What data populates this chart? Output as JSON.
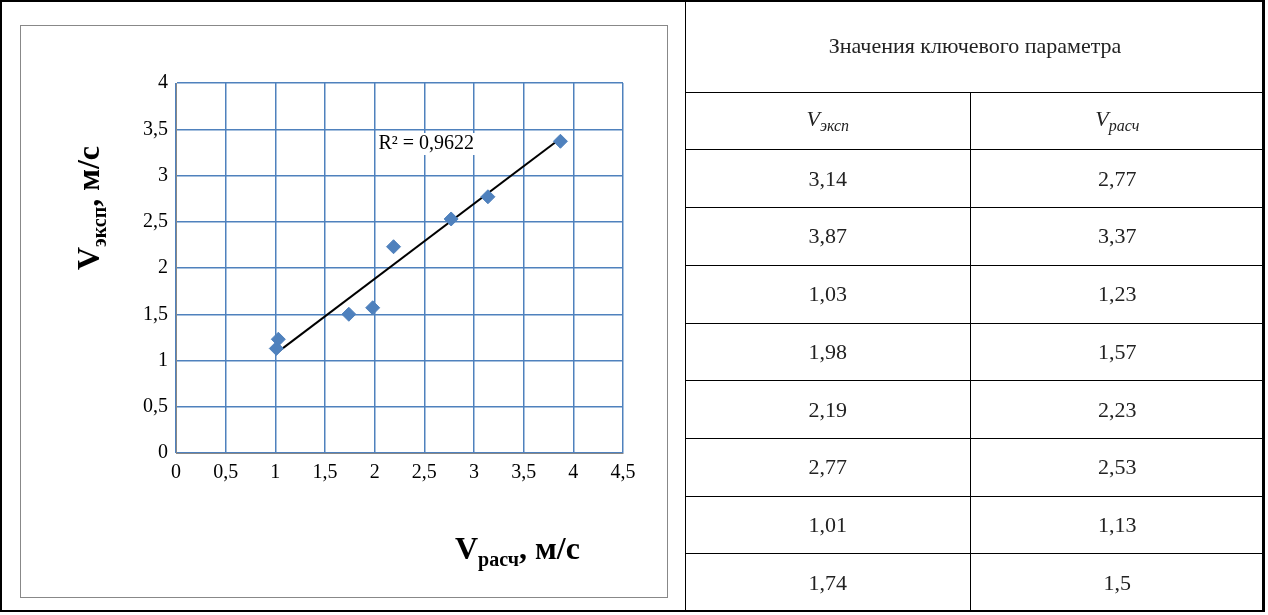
{
  "chart_data": {
    "type": "scatter",
    "xlabel": "V$_{расч}$, м/с",
    "ylabel": "V$_{эксп}$, м/с",
    "x": [
      3.14,
      3.87,
      1.03,
      1.98,
      2.19,
      2.77,
      1.01,
      1.74
    ],
    "series": [
      {
        "color": "#4f81bd",
        "values": [
          2.77,
          3.37,
          1.23,
          1.57,
          2.23,
          2.53,
          1.13,
          1.5
        ]
      },
      {
        "type": "line",
        "color": "#000000",
        "marker": "none",
        "x": [
          1.01,
          3.87
        ],
        "values": [
          1.08,
          3.4
        ]
      }
    ],
    "xlim": [
      0,
      4.5
    ],
    "xticks": [
      0,
      {
        "value": 0.5,
        "label": "0,5"
      },
      1,
      {
        "value": 1.5,
        "label": "1,5"
      },
      2,
      {
        "value": 2.5,
        "label": "2,5"
      },
      3,
      {
        "value": 3.5,
        "label": "3,5"
      },
      4,
      {
        "value": 4.5,
        "label": "4,5"
      }
    ],
    "ylim": [
      0,
      4
    ],
    "yticks": [
      0,
      {
        "value": 0.5,
        "label": "0,5"
      },
      1,
      {
        "value": 1.5,
        "label": "1,5"
      },
      2,
      {
        "value": 2.5,
        "label": "2,5"
      },
      3,
      {
        "value": 3.5,
        "label": "3,5"
      },
      4
    ],
    "grid": true,
    "marker": "diamond",
    "annotations": [
      "R² = 0,9622",
      "Значения ключевого параметра",
      "V$_{эксп}$",
      "V$_{расч}$",
      "3,14",
      "2,77",
      "3,87",
      "3,37",
      "1,03",
      "1,23",
      "1,98",
      "1,57",
      "2,19",
      "2,23",
      "2,77",
      "2,53",
      "1,01",
      "1,13",
      "1,74",
      "1,5"
    ]
  }
}
